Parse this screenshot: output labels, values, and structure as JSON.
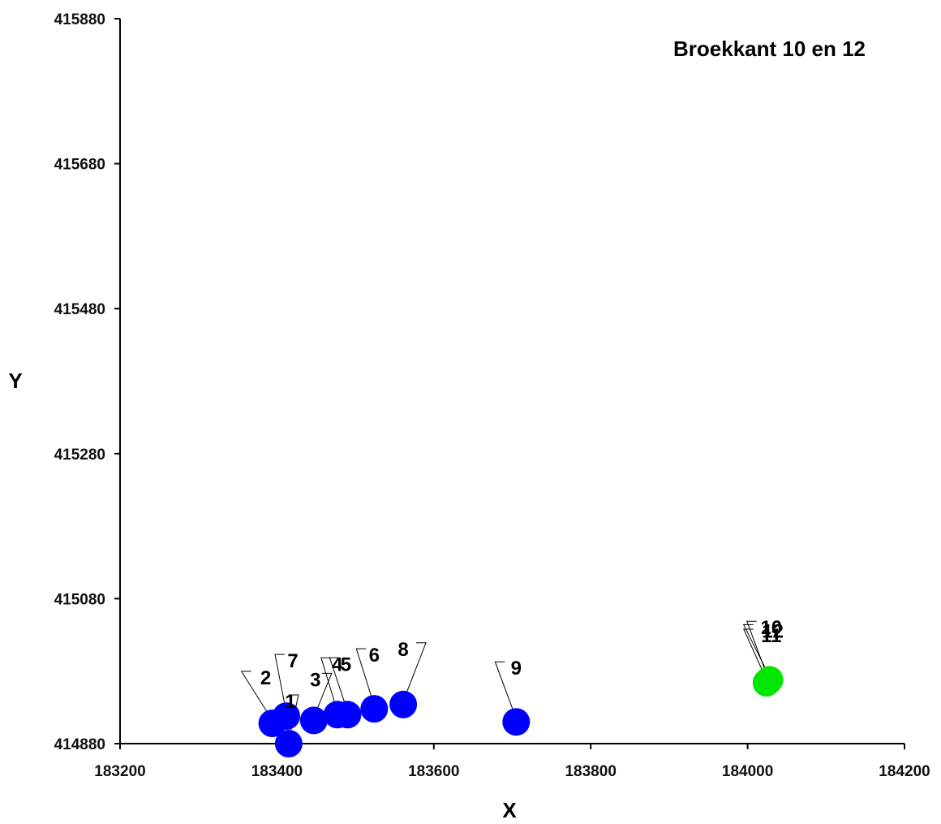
{
  "chart_data": {
    "type": "scatter",
    "title": "Broekkant 10 en 12",
    "xlabel": "X",
    "ylabel": "Y",
    "xlim": [
      183200,
      184200
    ],
    "ylim": [
      414880,
      415880
    ],
    "x_ticks": [
      "183200",
      "183400",
      "183600",
      "183800",
      "184000",
      "184200"
    ],
    "y_ticks": [
      "414880",
      "415080",
      "415280",
      "415480",
      "415680",
      "415880"
    ],
    "grid": false,
    "legend": "none",
    "colors": {
      "blue": "#0000ff",
      "green": "#00e600"
    },
    "points": [
      {
        "label": "1",
        "x": 183415,
        "y": 414880,
        "color": "blue"
      },
      {
        "label": "2",
        "x": 183394,
        "y": 414908,
        "color": "blue"
      },
      {
        "label": "7",
        "x": 183412,
        "y": 414918,
        "color": "blue"
      },
      {
        "label": "3",
        "x": 183447,
        "y": 414912,
        "color": "blue"
      },
      {
        "label": "4",
        "x": 183477,
        "y": 414920,
        "color": "blue"
      },
      {
        "label": "5",
        "x": 183490,
        "y": 414920,
        "color": "blue"
      },
      {
        "label": "6",
        "x": 183524,
        "y": 414928,
        "color": "blue"
      },
      {
        "label": "8",
        "x": 183561,
        "y": 414934,
        "color": "blue"
      },
      {
        "label": "9",
        "x": 183705,
        "y": 414910,
        "color": "blue"
      },
      {
        "label": "10",
        "x": 184026,
        "y": 414966,
        "color": "green"
      },
      {
        "label": "11",
        "x": 184024,
        "y": 414964,
        "color": "green"
      },
      {
        "label": "12",
        "x": 184028,
        "y": 414968,
        "color": "green"
      }
    ]
  }
}
